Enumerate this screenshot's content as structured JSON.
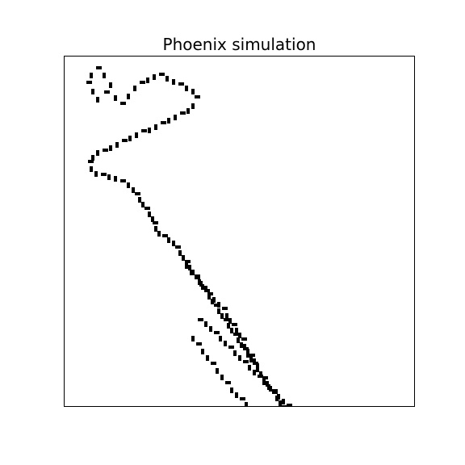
{
  "figure": {
    "title": "Phoenix simulation",
    "colors": {
      "background": "#ffffff",
      "cell": "#000000",
      "frame": "#000000"
    }
  },
  "cells": [
    [
      114,
      9
    ],
    [
      112,
      15
    ],
    [
      106,
      17
    ],
    [
      100,
      18
    ],
    [
      110,
      21
    ],
    [
      116,
      28
    ],
    [
      122,
      22
    ],
    [
      124,
      28
    ],
    [
      118,
      33
    ],
    [
      114,
      40
    ],
    [
      120,
      46
    ],
    [
      120,
      36
    ],
    [
      128,
      40
    ],
    [
      136,
      46
    ],
    [
      144,
      54
    ],
    [
      150,
      46
    ],
    [
      158,
      54
    ],
    [
      152,
      62
    ],
    [
      142,
      66
    ],
    [
      134,
      58
    ],
    [
      126,
      50
    ],
    [
      118,
      60
    ],
    [
      114,
      70
    ],
    [
      110,
      78
    ],
    [
      118,
      82
    ],
    [
      126,
      72
    ],
    [
      134,
      78
    ],
    [
      126,
      88
    ],
    [
      120,
      95
    ],
    [
      112,
      90
    ],
    [
      108,
      102
    ],
    [
      110,
      110
    ],
    [
      118,
      104
    ],
    [
      126,
      112
    ],
    [
      132,
      104
    ],
    [
      138,
      96
    ],
    [
      146,
      104
    ],
    [
      152,
      112
    ],
    [
      158,
      102
    ],
    [
      164,
      96
    ],
    [
      160,
      120
    ],
    [
      154,
      128
    ],
    [
      146,
      122
    ],
    [
      136,
      128
    ],
    [
      130,
      138
    ],
    [
      136,
      146
    ],
    [
      142,
      140
    ],
    [
      150,
      138
    ],
    [
      156,
      132
    ],
    [
      166,
      128
    ],
    [
      170,
      120
    ],
    [
      176,
      112
    ],
    [
      180,
      104
    ],
    [
      186,
      96
    ],
    [
      192,
      90
    ],
    [
      196,
      82
    ],
    [
      204,
      78
    ],
    [
      210,
      72
    ],
    [
      216,
      80
    ],
    [
      222,
      74
    ],
    [
      228,
      66
    ],
    [
      234,
      60
    ],
    [
      238,
      52
    ],
    [
      232,
      44
    ],
    [
      226,
      36
    ],
    [
      218,
      30
    ],
    [
      224,
      22
    ],
    [
      232,
      18
    ],
    [
      240,
      12
    ],
    [
      236,
      26
    ],
    [
      244,
      32
    ],
    [
      190,
      74
    ],
    [
      184,
      66
    ],
    [
      178,
      58
    ],
    [
      172,
      52
    ],
    [
      180,
      44
    ],
    [
      174,
      36
    ],
    [
      168,
      28
    ],
    [
      162,
      22
    ],
    [
      170,
      18
    ],
    [
      178,
      12
    ],
    [
      186,
      8
    ],
    [
      202,
      30
    ],
    [
      206,
      42
    ],
    [
      212,
      52
    ],
    [
      198,
      56
    ],
    [
      192,
      62
    ],
    [
      214,
      62
    ],
    [
      196,
      100
    ],
    [
      198,
      108
    ],
    [
      204,
      114
    ],
    [
      210,
      120
    ],
    [
      216,
      116
    ],
    [
      222,
      110
    ],
    [
      228,
      104
    ],
    [
      224,
      96
    ],
    [
      234,
      96
    ],
    [
      240,
      104
    ],
    [
      244,
      112
    ],
    [
      248,
      118
    ],
    [
      238,
      118
    ],
    [
      230,
      122
    ],
    [
      222,
      128
    ],
    [
      228,
      134
    ],
    [
      234,
      142
    ],
    [
      240,
      150
    ],
    [
      246,
      156
    ],
    [
      252,
      162
    ],
    [
      256,
      170
    ],
    [
      262,
      176
    ],
    [
      268,
      182
    ],
    [
      276,
      188
    ],
    [
      284,
      192
    ],
    [
      290,
      200
    ],
    [
      296,
      206
    ],
    [
      306,
      210
    ],
    [
      308,
      220
    ],
    [
      312,
      228
    ],
    [
      316,
      236
    ],
    [
      322,
      242
    ],
    [
      328,
      246
    ],
    [
      334,
      254
    ],
    [
      340,
      260
    ],
    [
      344,
      268
    ],
    [
      350,
      274
    ],
    [
      356,
      278
    ],
    [
      362,
      284
    ],
    [
      368,
      288
    ],
    [
      374,
      292
    ],
    [
      380,
      296
    ],
    [
      386,
      300
    ],
    [
      392,
      306
    ],
    [
      398,
      312
    ],
    [
      406,
      318
    ],
    [
      412,
      324
    ],
    [
      418,
      330
    ],
    [
      346,
      292
    ],
    [
      350,
      300
    ],
    [
      356,
      306
    ],
    [
      362,
      312
    ],
    [
      368,
      318
    ],
    [
      374,
      324
    ],
    [
      380,
      330
    ],
    [
      386,
      336
    ],
    [
      392,
      342
    ],
    [
      396,
      350
    ],
    [
      400,
      356
    ],
    [
      404,
      364
    ],
    [
      408,
      372
    ],
    [
      412,
      380
    ],
    [
      416,
      388
    ],
    [
      420,
      396
    ],
    [
      424,
      404
    ],
    [
      242,
      226
    ],
    [
      236,
      232
    ],
    [
      230,
      238
    ],
    [
      226,
      246
    ],
    [
      222,
      254
    ],
    [
      216,
      262
    ],
    [
      212,
      270
    ],
    [
      206,
      278
    ],
    [
      200,
      286
    ],
    [
      196,
      294
    ],
    [
      192,
      302
    ],
    [
      188,
      310
    ],
    [
      184,
      318
    ],
    [
      180,
      326
    ],
    [
      176,
      334
    ],
    [
      172,
      342
    ],
    [
      168,
      350
    ],
    [
      164,
      358
    ],
    [
      160,
      366
    ],
    [
      164,
      374
    ],
    [
      170,
      382
    ],
    [
      176,
      390
    ],
    [
      182,
      398
    ],
    [
      188,
      404
    ],
    [
      196,
      408
    ],
    [
      204,
      404
    ],
    [
      212,
      398
    ],
    [
      220,
      392
    ],
    [
      228,
      386
    ],
    [
      236,
      380
    ],
    [
      244,
      376
    ],
    [
      254,
      220
    ],
    [
      262,
      226
    ],
    [
      268,
      232
    ],
    [
      274,
      238
    ],
    [
      280,
      246
    ],
    [
      286,
      254
    ],
    [
      292,
      262
    ],
    [
      298,
      270
    ],
    [
      304,
      278
    ],
    [
      310,
      286
    ],
    [
      316,
      294
    ],
    [
      322,
      302
    ],
    [
      328,
      310
    ],
    [
      334,
      318
    ],
    [
      340,
      326
    ],
    [
      346,
      334
    ],
    [
      352,
      342
    ],
    [
      356,
      350
    ],
    [
      360,
      358
    ],
    [
      364,
      366
    ],
    [
      368,
      374
    ],
    [
      372,
      382
    ],
    [
      376,
      390
    ],
    [
      380,
      396
    ],
    [
      384,
      402
    ],
    [
      388,
      408
    ],
    [
      392,
      414
    ],
    [
      398,
      420
    ],
    [
      404,
      424
    ],
    [
      410,
      428
    ],
    [
      416,
      432
    ],
    [
      422,
      436
    ],
    [
      428,
      440
    ],
    [
      270,
      302
    ],
    [
      276,
      310
    ],
    [
      282,
      318
    ],
    [
      288,
      326
    ],
    [
      294,
      334
    ],
    [
      300,
      342
    ],
    [
      306,
      350
    ],
    [
      312,
      358
    ],
    [
      318,
      366
    ],
    [
      324,
      374
    ],
    [
      330,
      382
    ],
    [
      336,
      390
    ],
    [
      342,
      398
    ],
    [
      348,
      406
    ],
    [
      354,
      414
    ],
    [
      360,
      422
    ],
    [
      366,
      428
    ],
    [
      372,
      434
    ],
    [
      378,
      440
    ],
    [
      384,
      446
    ],
    [
      390,
      452
    ],
    [
      396,
      458
    ],
    [
      402,
      464
    ],
    [
      408,
      470
    ],
    [
      216,
      360
    ],
    [
      222,
      368
    ],
    [
      228,
      376
    ],
    [
      234,
      384
    ],
    [
      240,
      392
    ],
    [
      246,
      400
    ],
    [
      252,
      408
    ],
    [
      258,
      416
    ],
    [
      264,
      424
    ],
    [
      270,
      432
    ],
    [
      276,
      440
    ],
    [
      282,
      448
    ],
    [
      288,
      456
    ],
    [
      294,
      464
    ],
    [
      300,
      472
    ],
    [
      306,
      478
    ],
    [
      312,
      484
    ],
    [
      318,
      490
    ],
    [
      324,
      496
    ],
    [
      330,
      502
    ],
    [
      310,
      380
    ],
    [
      316,
      388
    ],
    [
      322,
      396
    ],
    [
      328,
      404
    ],
    [
      334,
      412
    ],
    [
      340,
      420
    ],
    [
      346,
      428
    ],
    [
      352,
      436
    ],
    [
      358,
      444
    ],
    [
      364,
      452
    ],
    [
      370,
      460
    ],
    [
      376,
      468
    ],
    [
      382,
      474
    ],
    [
      388,
      480
    ],
    [
      394,
      486
    ],
    [
      400,
      492
    ],
    [
      406,
      498
    ],
    [
      412,
      504
    ]
  ]
}
